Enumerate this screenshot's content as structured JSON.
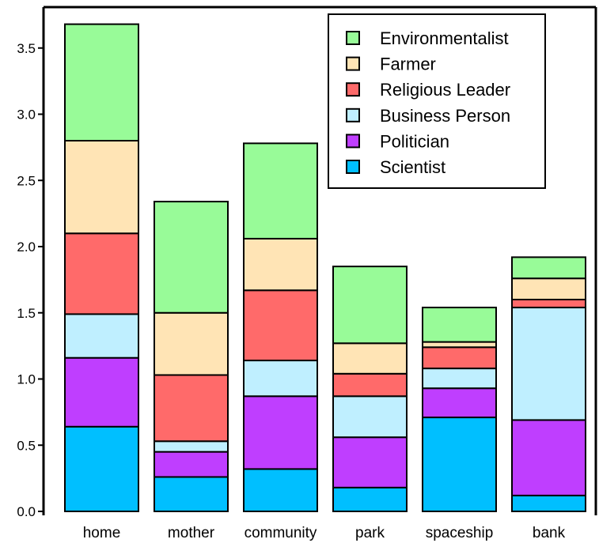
{
  "chart_data": {
    "type": "bar",
    "stacked": true,
    "categories": [
      "home",
      "mother",
      "community",
      "park",
      "spaceship",
      "bank"
    ],
    "ylim": [
      0,
      3.7
    ],
    "yticks": [
      "0.0",
      "0.5",
      "1.0",
      "1.5",
      "2.0",
      "2.5",
      "3.0",
      "3.5"
    ],
    "legend_position": "top-right",
    "grid": false,
    "series": [
      {
        "name": "Scientist",
        "color": "#00bfff",
        "values": [
          0.64,
          0.26,
          0.32,
          0.18,
          0.71,
          0.12
        ]
      },
      {
        "name": "Politician",
        "color": "#bf3eff",
        "values": [
          0.52,
          0.19,
          0.55,
          0.38,
          0.22,
          0.57
        ]
      },
      {
        "name": "Business Person",
        "color": "#bfefff",
        "values": [
          0.33,
          0.08,
          0.27,
          0.31,
          0.15,
          0.85
        ]
      },
      {
        "name": "Religious Leader",
        "color": "#ff6a6a",
        "values": [
          0.61,
          0.5,
          0.53,
          0.17,
          0.16,
          0.06
        ]
      },
      {
        "name": "Farmer",
        "color": "#ffe4b5",
        "values": [
          0.7,
          0.47,
          0.39,
          0.23,
          0.04,
          0.16
        ]
      },
      {
        "name": "Environmentalist",
        "color": "#98fb98",
        "values": [
          0.88,
          0.84,
          0.72,
          0.58,
          0.26,
          0.16
        ]
      }
    ]
  }
}
